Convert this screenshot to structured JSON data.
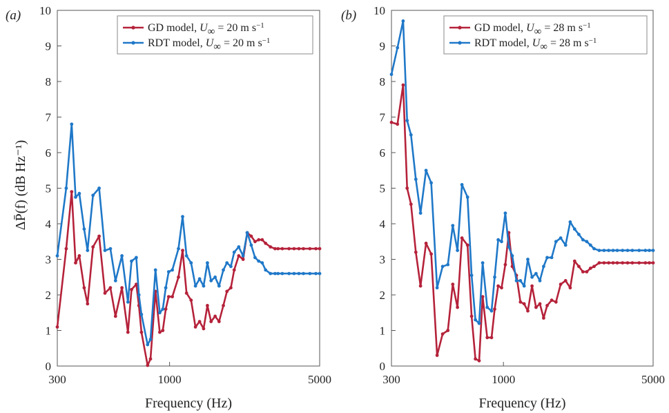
{
  "ylabel": "ΔP̄(f) (dB Hz⁻¹)",
  "chart_data": [
    {
      "type": "line",
      "panel_label": "(a)",
      "xlabel": "Frequency (Hz)",
      "xscale": "log",
      "xlim": [
        300,
        5000
      ],
      "ylim": [
        0,
        10
      ],
      "xticks": [
        {
          "value": 300,
          "label": "300"
        },
        {
          "value": 1000,
          "label": "1000"
        },
        {
          "value": 5000,
          "label": "5000"
        }
      ],
      "yticks": [
        0,
        1,
        2,
        3,
        4,
        5,
        6,
        7,
        8,
        9,
        10
      ],
      "legend_position": "top-right",
      "series": [
        {
          "name": "GD model, U∞ = 20 m s⁻¹",
          "legend_main": "GD model, ",
          "legend_u": "U",
          "legend_sub": "∞",
          "legend_rest": " = 20 m s",
          "legend_sup": "−1",
          "color": "#b5223a",
          "x": [
            300,
            330,
            350,
            365,
            380,
            400,
            415,
            440,
            470,
            500,
            530,
            560,
            600,
            640,
            665,
            700,
            720,
            740,
            790,
            815,
            860,
            900,
            930,
            960,
            990,
            1030,
            1100,
            1150,
            1200,
            1260,
            1320,
            1380,
            1440,
            1500,
            1560,
            1630,
            1700,
            1780,
            1850,
            1930,
            2000,
            2100,
            2200,
            2300,
            2400,
            2500,
            2600,
            2700,
            2800,
            2950,
            3100,
            3200,
            3350,
            3600,
            3800,
            4000,
            4200,
            4500,
            4800,
            5000
          ],
          "y": [
            1.1,
            3.3,
            4.9,
            2.9,
            3.1,
            2.2,
            1.75,
            3.35,
            3.65,
            2.05,
            2.2,
            1.4,
            2.2,
            0.95,
            2.15,
            2.3,
            1.7,
            0.95,
            0.02,
            0.2,
            2.1,
            0.95,
            1.0,
            1.6,
            1.95,
            1.95,
            2.5,
            3.25,
            2.05,
            1.85,
            1.1,
            1.25,
            1.05,
            1.7,
            1.25,
            1.4,
            1.25,
            1.7,
            2.1,
            2.2,
            2.7,
            3.1,
            3.0,
            3.75,
            3.65,
            3.5,
            3.55,
            3.55,
            3.45,
            3.35,
            3.3,
            3.3,
            3.3,
            3.3,
            3.3,
            3.3,
            3.3,
            3.3,
            3.3,
            3.3
          ]
        },
        {
          "name": "RDT model, U∞ = 20 m s⁻¹",
          "legend_main": "RDT model, ",
          "legend_u": "U",
          "legend_sub": "∞",
          "legend_rest": " = 20 m s",
          "legend_sup": "−1",
          "color": "#1f78c8",
          "x": [
            300,
            330,
            350,
            365,
            380,
            400,
            415,
            440,
            470,
            500,
            530,
            560,
            600,
            640,
            665,
            700,
            720,
            740,
            790,
            815,
            860,
            900,
            930,
            960,
            990,
            1030,
            1100,
            1150,
            1200,
            1260,
            1320,
            1380,
            1440,
            1500,
            1560,
            1630,
            1700,
            1780,
            1850,
            1930,
            2000,
            2100,
            2200,
            2300,
            2400,
            2500,
            2600,
            2700,
            2800,
            2950,
            3100,
            3200,
            3350,
            3600,
            3800,
            4000,
            4200,
            4500,
            4800,
            5000
          ],
          "y": [
            3.1,
            5.0,
            6.8,
            4.75,
            4.85,
            3.85,
            3.25,
            4.8,
            5.0,
            3.25,
            3.3,
            2.4,
            3.1,
            1.8,
            2.95,
            3.05,
            2.0,
            1.45,
            0.6,
            0.75,
            2.7,
            1.5,
            1.6,
            2.2,
            2.65,
            2.7,
            3.3,
            4.2,
            3.1,
            2.9,
            2.25,
            2.45,
            2.25,
            2.9,
            2.4,
            2.5,
            2.25,
            2.7,
            2.9,
            2.8,
            3.2,
            3.35,
            3.1,
            3.75,
            3.4,
            3.05,
            2.95,
            2.9,
            2.7,
            2.6,
            2.6,
            2.6,
            2.6,
            2.6,
            2.6,
            2.6,
            2.6,
            2.6,
            2.6,
            2.6
          ]
        }
      ]
    },
    {
      "type": "line",
      "panel_label": "(b)",
      "xlabel": "Frequency (Hz)",
      "xscale": "log",
      "xlim": [
        300,
        5000
      ],
      "ylim": [
        0,
        10
      ],
      "xticks": [
        {
          "value": 300,
          "label": "300"
        },
        {
          "value": 1000,
          "label": "1000"
        },
        {
          "value": 5000,
          "label": "5000"
        }
      ],
      "yticks": [
        0,
        1,
        2,
        3,
        4,
        5,
        6,
        7,
        8,
        9,
        10
      ],
      "legend_position": "top-right",
      "series": [
        {
          "name": "GD model, U∞ = 28 m s⁻¹",
          "legend_main": "GD model, ",
          "legend_u": "U",
          "legend_sub": "∞",
          "legend_rest": " = 28 m s",
          "legend_sup": "−1",
          "color": "#b5223a",
          "x": [
            300,
            320,
            340,
            355,
            370,
            390,
            410,
            435,
            460,
            490,
            520,
            550,
            580,
            610,
            640,
            680,
            710,
            740,
            770,
            800,
            840,
            880,
            910,
            945,
            980,
            1020,
            1060,
            1100,
            1150,
            1200,
            1250,
            1300,
            1360,
            1420,
            1480,
            1540,
            1600,
            1680,
            1760,
            1850,
            1950,
            2050,
            2150,
            2250,
            2350,
            2450,
            2550,
            2650,
            2800,
            2950,
            3100,
            3250,
            3400,
            3600,
            3800,
            4000,
            4300,
            4600,
            4800,
            5000
          ],
          "y": [
            6.85,
            6.8,
            7.9,
            5.0,
            4.55,
            3.2,
            2.25,
            3.45,
            3.15,
            0.3,
            0.9,
            1.0,
            2.3,
            1.65,
            3.6,
            3.4,
            1.4,
            0.2,
            0.15,
            1.95,
            0.8,
            0.8,
            1.6,
            2.25,
            2.2,
            2.85,
            3.75,
            2.8,
            2.55,
            1.8,
            1.75,
            1.55,
            2.25,
            1.65,
            1.75,
            1.35,
            1.7,
            1.85,
            1.8,
            2.3,
            2.4,
            2.2,
            2.95,
            2.8,
            2.65,
            2.65,
            2.75,
            2.8,
            2.9,
            2.9,
            2.9,
            2.9,
            2.9,
            2.9,
            2.9,
            2.9,
            2.9,
            2.9,
            2.9,
            2.9
          ]
        },
        {
          "name": "RDT model, U∞ = 28 m s⁻¹",
          "legend_main": "RDT model, ",
          "legend_u": "U",
          "legend_sub": "∞",
          "legend_rest": " = 28 m s",
          "legend_sup": "−1",
          "color": "#1f78c8",
          "x": [
            300,
            320,
            340,
            355,
            370,
            390,
            410,
            435,
            460,
            490,
            520,
            550,
            580,
            610,
            640,
            680,
            710,
            740,
            770,
            800,
            840,
            880,
            910,
            945,
            980,
            1020,
            1060,
            1100,
            1150,
            1200,
            1250,
            1300,
            1360,
            1420,
            1480,
            1540,
            1600,
            1680,
            1760,
            1850,
            1950,
            2050,
            2150,
            2250,
            2350,
            2450,
            2550,
            2650,
            2800,
            2950,
            3100,
            3250,
            3400,
            3600,
            3800,
            4000,
            4300,
            4600,
            4800,
            5000
          ],
          "y": [
            8.2,
            8.95,
            9.7,
            6.9,
            6.5,
            5.25,
            4.3,
            5.5,
            5.15,
            2.2,
            2.8,
            2.85,
            3.95,
            3.25,
            5.1,
            4.75,
            2.55,
            1.3,
            1.2,
            2.9,
            1.65,
            1.55,
            2.5,
            3.55,
            3.5,
            4.3,
            3.35,
            3.1,
            2.4,
            2.4,
            2.25,
            3.0,
            2.5,
            2.6,
            2.4,
            2.8,
            3.05,
            3.05,
            3.5,
            3.6,
            3.4,
            4.05,
            3.85,
            3.7,
            3.55,
            3.5,
            3.4,
            3.3,
            3.25,
            3.25,
            3.25,
            3.25,
            3.25,
            3.25,
            3.25,
            3.25,
            3.25,
            3.25,
            3.25,
            3.25
          ]
        }
      ]
    }
  ]
}
